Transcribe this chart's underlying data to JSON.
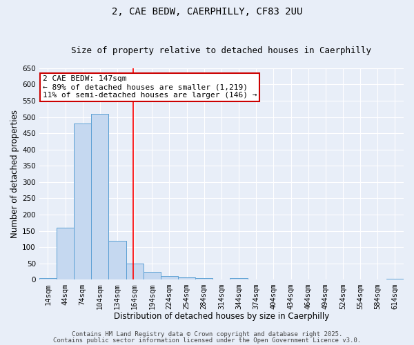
{
  "title_line1": "2, CAE BEDW, CAERPHILLY, CF83 2UU",
  "title_line2": "Size of property relative to detached houses in Caerphilly",
  "xlabel": "Distribution of detached houses by size in Caerphilly",
  "ylabel": "Number of detached properties",
  "bar_color": "#c5d8f0",
  "bar_edge_color": "#5a9fd4",
  "categories": [
    "14sqm",
    "44sqm",
    "74sqm",
    "104sqm",
    "134sqm",
    "164sqm",
    "194sqm",
    "224sqm",
    "254sqm",
    "284sqm",
    "314sqm",
    "344sqm",
    "374sqm",
    "404sqm",
    "434sqm",
    "464sqm",
    "494sqm",
    "524sqm",
    "554sqm",
    "584sqm",
    "614sqm"
  ],
  "values": [
    5,
    160,
    480,
    510,
    120,
    50,
    25,
    12,
    8,
    6,
    0,
    5,
    0,
    0,
    0,
    0,
    0,
    0,
    0,
    0,
    4
  ],
  "ylim": [
    0,
    650
  ],
  "yticks": [
    0,
    50,
    100,
    150,
    200,
    250,
    300,
    350,
    400,
    450,
    500,
    550,
    600,
    650
  ],
  "red_line_x": 4.9,
  "annotation_line1": "2 CAE BEDW: 147sqm",
  "annotation_line2": "← 89% of detached houses are smaller (1,219)",
  "annotation_line3": "11% of semi-detached houses are larger (146) →",
  "annotation_box_color": "#ffffff",
  "annotation_box_edge": "#cc0000",
  "footer_line1": "Contains HM Land Registry data © Crown copyright and database right 2025.",
  "footer_line2": "Contains public sector information licensed under the Open Government Licence v3.0.",
  "background_color": "#e8eef8",
  "grid_color": "#ffffff",
  "title_fontsize": 10,
  "subtitle_fontsize": 9,
  "axis_label_fontsize": 8.5,
  "tick_fontsize": 7.5,
  "annotation_fontsize": 8,
  "footer_fontsize": 6.5
}
